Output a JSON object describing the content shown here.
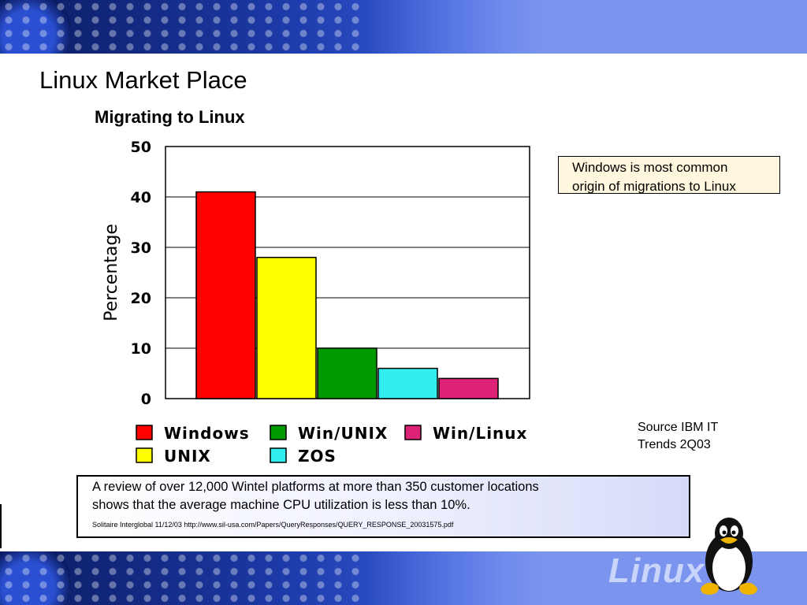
{
  "slide": {
    "title": "Linux Market Place",
    "brand_word": "Linux"
  },
  "chart_data": {
    "type": "bar",
    "title": "Migrating to Linux",
    "ylabel": "Percentage",
    "xlabel": "",
    "ylim": [
      0,
      50
    ],
    "yticks": [
      0,
      10,
      20,
      30,
      40,
      50
    ],
    "grid": true,
    "categories": [
      "Windows",
      "UNIX",
      "Win/UNIX",
      "ZOS",
      "Win/Linux"
    ],
    "values": [
      41,
      28,
      10,
      6,
      4
    ],
    "colors": [
      "#ff0000",
      "#ffff00",
      "#009900",
      "#33eeee",
      "#dd2277"
    ],
    "legend": {
      "placement": "bottom",
      "entries": [
        {
          "label": "Windows",
          "color": "#ff0000"
        },
        {
          "label": "Win/UNIX",
          "color": "#009900"
        },
        {
          "label": "Win/Linux",
          "color": "#dd2277"
        },
        {
          "label": "UNIX",
          "color": "#ffff00"
        },
        {
          "label": "ZOS",
          "color": "#33eeee"
        }
      ]
    }
  },
  "callout": {
    "line1": "Windows is most common",
    "line2": "origin of migrations to Linux"
  },
  "source": {
    "line1": "Source IBM IT",
    "line2": "Trends 2Q03"
  },
  "review": {
    "line1": "A review of over 12,000 Wintel platforms at more than 350 customer locations",
    "line2": "shows that the average machine CPU utilization is less than 10%.",
    "citation": "Solitaire Interglobal  11/12/03 http://www.sil-usa.com/Papers/QueryResponses/QUERY_RESPONSE_20031575.pdf"
  },
  "colors": {
    "banner_dark": "#0a1a5e",
    "banner_light": "#7b95ee",
    "callout_bg": "#fff8df"
  }
}
